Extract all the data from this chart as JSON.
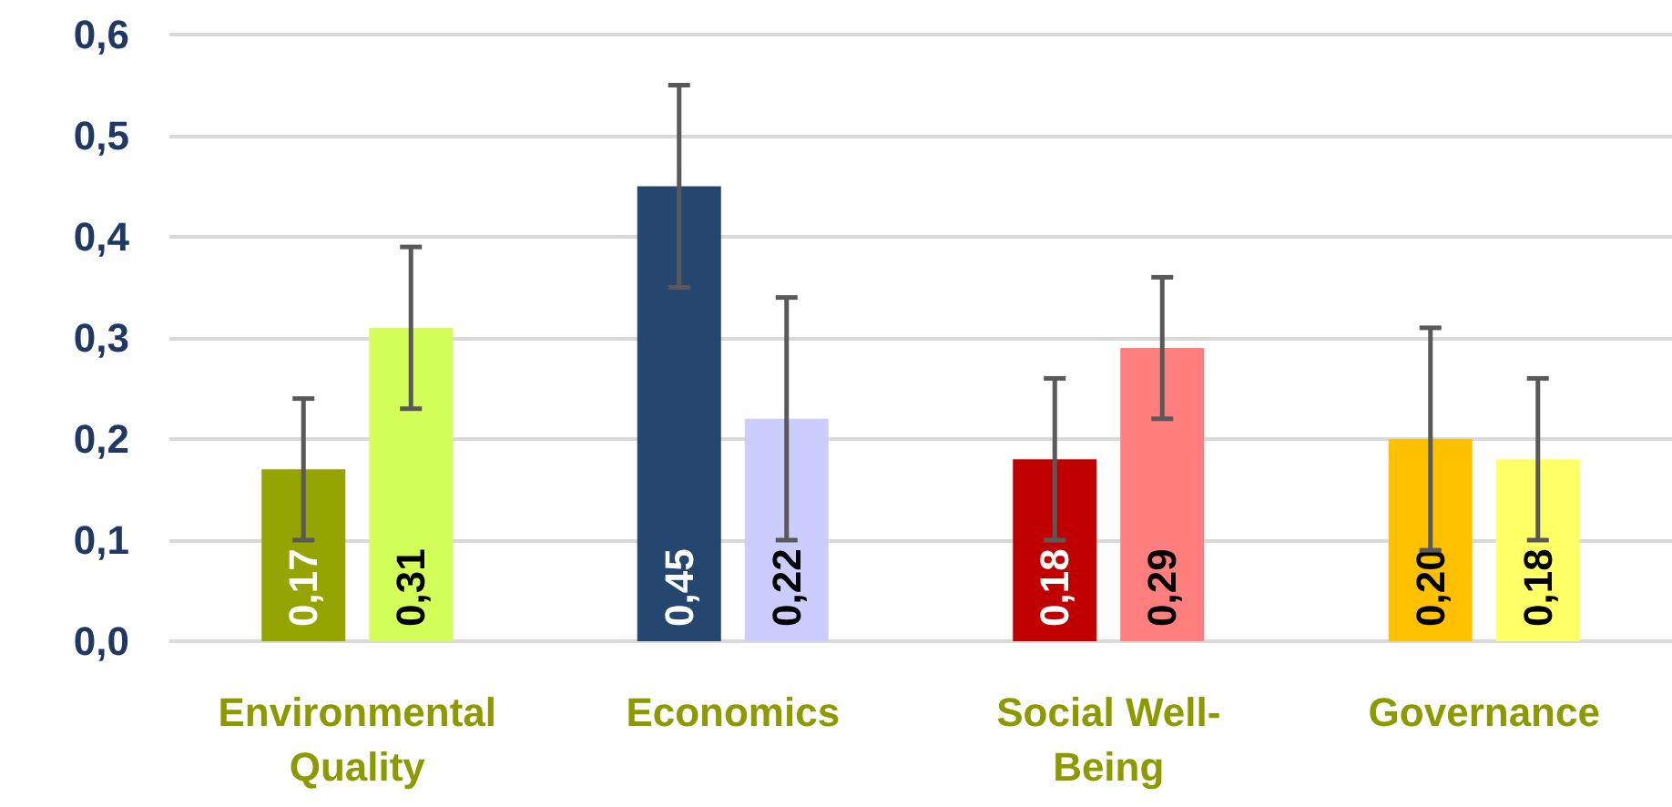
{
  "chart_data": {
    "type": "bar",
    "categories": [
      "Environmental Quality",
      "Economics",
      "Social Well-Being",
      "Governance"
    ],
    "series": [
      {
        "colors": [
          "#95a400",
          "#24466f",
          "#c00000",
          "#ffc000"
        ],
        "values": [
          0.17,
          0.45,
          0.18,
          0.2
        ],
        "errors": [
          0.07,
          0.1,
          0.08,
          0.11
        ],
        "value_labels": [
          "0,17",
          "0,45",
          "0,18",
          "0,20"
        ]
      },
      {
        "colors": [
          "#d4ff5a",
          "#ccccff",
          "#ff7f7f",
          "#ffff66"
        ],
        "values": [
          0.31,
          0.22,
          0.29,
          0.18
        ],
        "errors": [
          0.08,
          0.12,
          0.07,
          0.08
        ],
        "value_labels": [
          "0,31",
          "0,22",
          "0,29",
          "0,18"
        ]
      }
    ],
    "ylim": [
      0,
      0.6
    ],
    "yticks": [
      {
        "value": 0,
        "label": "0,0"
      },
      {
        "value": 0.1,
        "label": "0,1"
      },
      {
        "value": 0.2,
        "label": "0,2"
      },
      {
        "value": 0.3,
        "label": "0,3"
      },
      {
        "value": 0.4,
        "label": "0,4"
      },
      {
        "value": 0.5,
        "label": "0,5"
      },
      {
        "value": 0.6,
        "label": "0,6"
      }
    ],
    "grid": "y"
  }
}
